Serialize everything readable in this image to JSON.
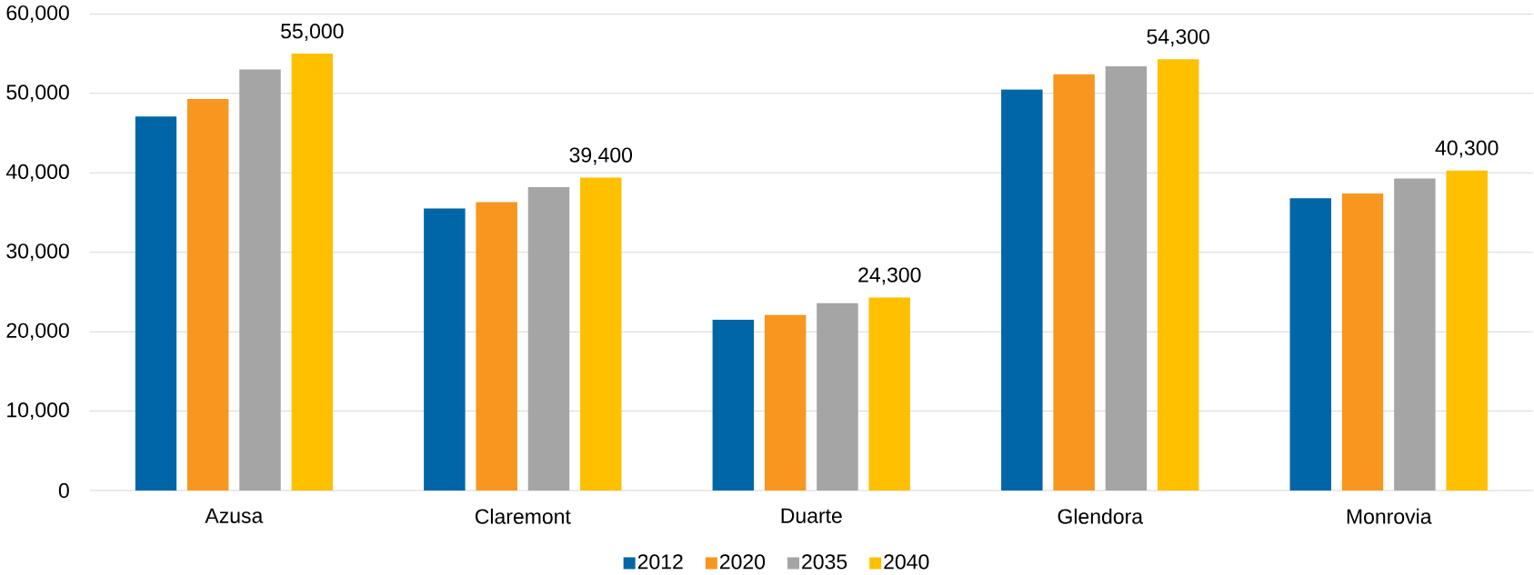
{
  "chart_data": {
    "type": "bar",
    "categories": [
      "Azusa",
      "Claremont",
      "Duarte",
      "Glendora",
      "Monrovia"
    ],
    "series": [
      {
        "name": "2012",
        "color": "#0066a6",
        "values": [
          47100,
          35500,
          21500,
          50500,
          36800
        ]
      },
      {
        "name": "2020",
        "color": "#f7971f",
        "values": [
          49300,
          36300,
          22100,
          52400,
          37400
        ]
      },
      {
        "name": "2035",
        "color": "#a5a5a5",
        "values": [
          53000,
          38200,
          23600,
          53400,
          39300
        ]
      },
      {
        "name": "2040",
        "color": "#ffc000",
        "values": [
          55000,
          39400,
          24300,
          54300,
          40300
        ],
        "value_labels": [
          "55,000",
          "39,400",
          "24,300",
          "54,300",
          "40,300"
        ]
      }
    ],
    "ylim": [
      0,
      60000
    ],
    "yticks": [
      0,
      {
        "value": 10000,
        "label": "10,000"
      },
      {
        "value": 20000,
        "label": "20,000"
      },
      {
        "value": 30000,
        "label": "30,000"
      },
      {
        "value": 40000,
        "label": "40,000"
      },
      {
        "value": 50000,
        "label": "50,000"
      },
      {
        "value": 60000,
        "label": "60,000"
      }
    ],
    "grid": "y",
    "legend": "bottom"
  }
}
